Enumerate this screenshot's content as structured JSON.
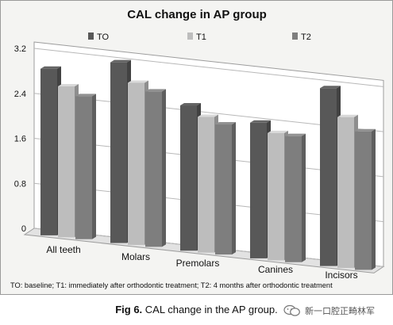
{
  "chart_data": {
    "type": "bar",
    "title": "CAL change in AP group",
    "categories": [
      "All teeth",
      "Molars",
      "Premolars",
      "Canines",
      "Incisors"
    ],
    "series": [
      {
        "name": "TO",
        "color": "#585858",
        "values": [
          2.85,
          3.1,
          2.47,
          2.3,
          3.05
        ]
      },
      {
        "name": "T1",
        "color": "#bdbdbd",
        "values": [
          2.57,
          2.77,
          2.3,
          2.15,
          2.57
        ]
      },
      {
        "name": "T2",
        "color": "#7e7e7e",
        "values": [
          2.43,
          2.65,
          2.2,
          2.13,
          2.35
        ]
      }
    ],
    "yticks": [
      "0",
      "0.8",
      "1.6",
      "2.4",
      "3.2"
    ],
    "ylim": [
      0,
      3.2
    ],
    "legend": "top",
    "grid": true,
    "footnote": "TO: baseline; T1: immediately after orthodontic treatment; T2: 4 months after orthodontic treatment"
  },
  "caption": {
    "label": "Fig 6.",
    "text": "CAL change in the AP group."
  },
  "watermark": {
    "text": "新一口腔正畸林军",
    "icon": "wechat-icon"
  }
}
